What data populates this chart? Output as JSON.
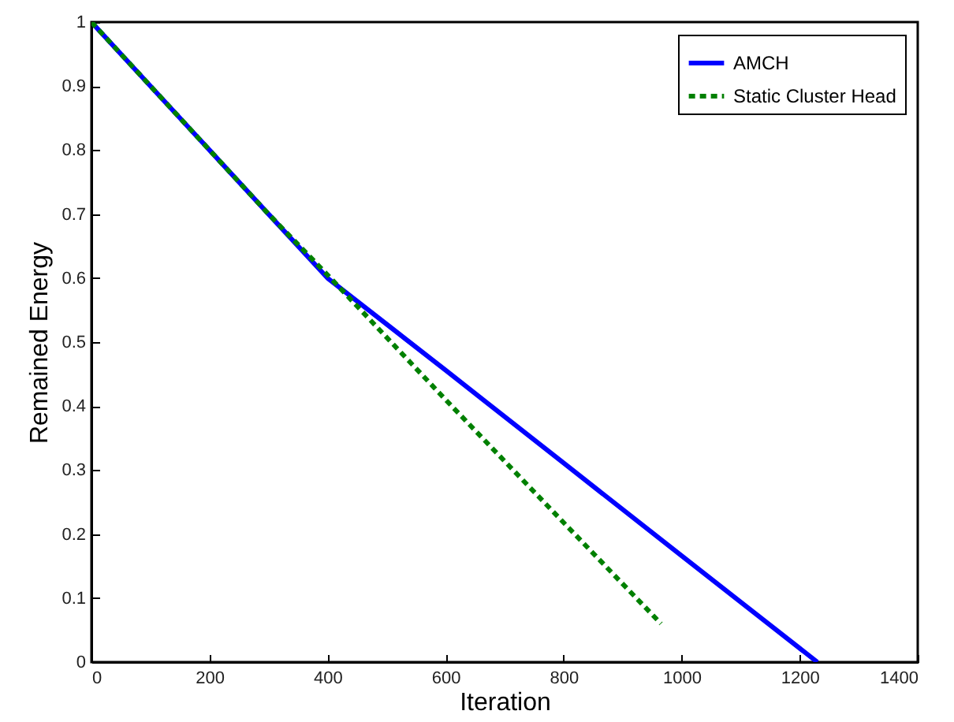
{
  "chart_data": {
    "type": "line",
    "xlabel": "Iteration",
    "ylabel": "Remained Energy",
    "xlim": [
      0,
      1400
    ],
    "xticks": [
      0,
      200,
      400,
      600,
      800,
      1000,
      1200,
      1400
    ],
    "ylim": [
      0,
      1
    ],
    "yticks": [
      0,
      0.1,
      0.2,
      0.3,
      0.4,
      0.5,
      0.6,
      0.7,
      0.8,
      0.9,
      1
    ],
    "grid": false,
    "legend": "top right",
    "marker": "none",
    "series": [
      {
        "name": "AMCH",
        "color": "#0000ff",
        "line_style": "solid",
        "x": [
          0,
          100,
          200,
          300,
          400,
          600,
          800,
          1000,
          1230
        ],
        "values": [
          1,
          0.9,
          0.8,
          0.7,
          0.6,
          0.456,
          0.311,
          0.166,
          0
        ]
      },
      {
        "name": "Static Cluster Head",
        "color": "#008000",
        "line_style": "dashed",
        "x": [
          0,
          100,
          200,
          300,
          400,
          600,
          800,
          965
        ],
        "values": [
          1,
          0.9,
          0.8,
          0.7,
          0.605,
          0.41,
          0.218,
          0.06
        ]
      }
    ]
  }
}
